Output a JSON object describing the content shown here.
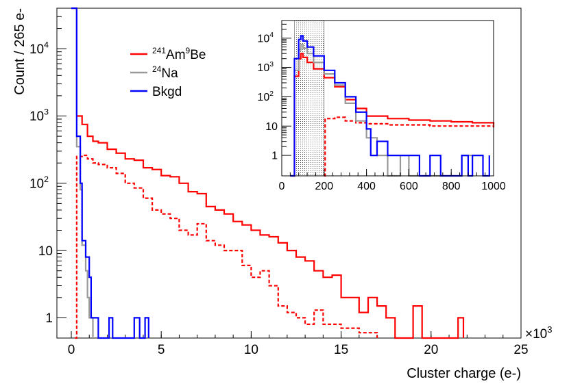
{
  "chart_data": {
    "type": "histogram",
    "colors": {
      "ambe": "#ff0000",
      "na24": "#999999",
      "bkgd": "#0000ff"
    },
    "main": {
      "xlabel": "Cluster charge (e-)",
      "ylabel": "Count / 265 e-",
      "x_multiplier": "×10",
      "x_multiplier_exp": "3",
      "xlim": [
        -0.8,
        25
      ],
      "ylim": [
        0.5,
        40000
      ],
      "log_y": true,
      "xticks": [
        0,
        5,
        10,
        15,
        20,
        25
      ],
      "xtick_labels": [
        "0",
        "5",
        "10",
        "15",
        "20",
        "25"
      ],
      "ytick_labels": [
        "1",
        "10",
        "10",
        "10",
        "10"
      ],
      "ytick_exps": [
        "",
        "",
        "2",
        "3",
        "4"
      ],
      "legend": [
        {
          "key": "ambe",
          "sup1": "241",
          "t1": "Am",
          "sup2": "9",
          "t2": "Be"
        },
        {
          "key": "na24",
          "sup1": "24",
          "t1": "Na",
          "sup2": "",
          "t2": ""
        },
        {
          "key": "bkgd",
          "sup1": "",
          "t1": "Bkgd",
          "sup2": "",
          "t2": ""
        }
      ],
      "series": [
        {
          "key": "ambe",
          "style": "solid",
          "points": [
            [
              0.0,
              40000
            ],
            [
              0.2,
              40000
            ],
            [
              0.3,
              1000
            ],
            [
              0.6,
              750
            ],
            [
              0.9,
              500
            ],
            [
              1.2,
              420
            ],
            [
              1.5,
              400
            ],
            [
              2.0,
              320
            ],
            [
              2.5,
              280
            ],
            [
              3.0,
              230
            ],
            [
              3.5,
              220
            ],
            [
              4.0,
              170
            ],
            [
              4.5,
              160
            ],
            [
              5.0,
              130
            ],
            [
              5.5,
              125
            ],
            [
              6.0,
              100
            ],
            [
              6.5,
              75
            ],
            [
              7.0,
              70
            ],
            [
              7.5,
              45
            ],
            [
              8.0,
              40
            ],
            [
              8.5,
              35
            ],
            [
              9.0,
              27
            ],
            [
              9.5,
              24
            ],
            [
              10.0,
              20
            ],
            [
              10.5,
              17
            ],
            [
              11.0,
              16
            ],
            [
              11.5,
              13
            ],
            [
              12.0,
              10
            ],
            [
              12.5,
              8
            ],
            [
              13.0,
              7
            ],
            [
              13.5,
              5
            ],
            [
              14.0,
              4
            ],
            [
              14.5,
              4.3
            ],
            [
              15.0,
              2
            ],
            [
              15.5,
              2
            ],
            [
              16.0,
              1.2
            ],
            [
              16.5,
              2
            ],
            [
              17.0,
              1.5
            ],
            [
              17.5,
              1
            ],
            [
              18.0,
              0.5
            ],
            [
              19.0,
              1.5
            ],
            [
              19.5,
              0.5
            ],
            [
              21.5,
              1
            ],
            [
              21.8,
              0.5
            ]
          ]
        },
        {
          "key": "ambe",
          "style": "dashed",
          "points": [
            [
              0.2,
              0.5
            ],
            [
              0.3,
              250
            ],
            [
              0.6,
              260
            ],
            [
              0.9,
              230
            ],
            [
              1.2,
              200
            ],
            [
              1.5,
              190
            ],
            [
              2.0,
              170
            ],
            [
              2.5,
              140
            ],
            [
              3.0,
              100
            ],
            [
              3.5,
              85
            ],
            [
              4.0,
              60
            ],
            [
              4.5,
              40
            ],
            [
              5.0,
              35
            ],
            [
              5.5,
              30
            ],
            [
              6.0,
              20
            ],
            [
              6.5,
              17
            ],
            [
              7.0,
              25
            ],
            [
              7.5,
              14
            ],
            [
              8.0,
              12
            ],
            [
              8.5,
              10
            ],
            [
              9.0,
              10
            ],
            [
              9.5,
              6
            ],
            [
              10.0,
              4
            ],
            [
              10.5,
              5
            ],
            [
              11.0,
              3
            ],
            [
              11.5,
              1.5
            ],
            [
              12.0,
              1.2
            ],
            [
              12.5,
              1
            ],
            [
              13.0,
              0.8
            ],
            [
              13.5,
              1.3
            ],
            [
              14.0,
              0.8
            ],
            [
              15.0,
              0.7
            ],
            [
              16.0,
              0.6
            ],
            [
              17.0,
              0.5
            ]
          ]
        },
        {
          "key": "na24",
          "style": "solid",
          "points": [
            [
              0.0,
              40000
            ],
            [
              0.2,
              40000
            ],
            [
              0.3,
              350
            ],
            [
              0.5,
              80
            ],
            [
              0.6,
              12
            ],
            [
              0.8,
              5
            ],
            [
              0.9,
              2
            ],
            [
              1.0,
              1
            ],
            [
              1.2,
              0.5
            ]
          ]
        },
        {
          "key": "bkgd",
          "style": "solid",
          "points": [
            [
              0.0,
              40000
            ],
            [
              0.2,
              40000
            ],
            [
              0.3,
              500
            ],
            [
              0.5,
              100
            ],
            [
              0.6,
              14
            ],
            [
              0.8,
              8
            ],
            [
              1.0,
              4
            ],
            [
              1.1,
              1
            ],
            [
              1.5,
              0.5
            ],
            [
              2.1,
              1
            ],
            [
              2.3,
              0.5
            ],
            [
              3.5,
              1
            ],
            [
              3.8,
              0.5
            ],
            [
              4.1,
              1
            ],
            [
              4.3,
              0.5
            ]
          ]
        }
      ]
    },
    "inset": {
      "xlim": [
        0,
        1000
      ],
      "ylim": [
        0.2,
        40000
      ],
      "log_y": true,
      "xticks": [
        0,
        200,
        400,
        600,
        800,
        1000
      ],
      "xtick_labels": [
        "0",
        "200",
        "400",
        "600",
        "800",
        "1000"
      ],
      "ytick_labels": [
        "1",
        "10",
        "10",
        "10",
        "10"
      ],
      "ytick_exps": [
        "",
        "",
        "2",
        "3",
        "4"
      ],
      "shaded_region": [
        60,
        200
      ],
      "series": [
        {
          "key": "ambe",
          "style": "solid",
          "points": [
            [
              40,
              0.2
            ],
            [
              60,
              500
            ],
            [
              80,
              2000
            ],
            [
              90,
              3000
            ],
            [
              100,
              2200
            ],
            [
              120,
              1500
            ],
            [
              150,
              900
            ],
            [
              200,
              450
            ],
            [
              250,
              220
            ],
            [
              300,
              80
            ],
            [
              350,
              40
            ],
            [
              400,
              22
            ],
            [
              500,
              18
            ],
            [
              600,
              16
            ],
            [
              700,
              15
            ],
            [
              800,
              14
            ],
            [
              900,
              13
            ],
            [
              1000,
              11
            ]
          ]
        },
        {
          "key": "ambe",
          "style": "dashed",
          "points": [
            [
              200,
              0.2
            ],
            [
              205,
              18
            ],
            [
              250,
              20
            ],
            [
              300,
              15
            ],
            [
              350,
              13
            ],
            [
              400,
              12
            ],
            [
              500,
              11
            ],
            [
              600,
              11
            ],
            [
              700,
              10
            ],
            [
              800,
              10
            ],
            [
              900,
              10
            ],
            [
              1000,
              9
            ]
          ]
        },
        {
          "key": "na24",
          "style": "solid",
          "points": [
            [
              40,
              0.2
            ],
            [
              60,
              800
            ],
            [
              80,
              4000
            ],
            [
              90,
              6000
            ],
            [
              100,
              4500
            ],
            [
              120,
              3000
            ],
            [
              150,
              1500
            ],
            [
              200,
              600
            ],
            [
              250,
              250
            ],
            [
              300,
              60
            ],
            [
              350,
              15
            ],
            [
              400,
              4
            ],
            [
              450,
              1
            ],
            [
              500,
              0.2
            ],
            [
              560,
              1
            ],
            [
              600,
              0.2
            ],
            [
              850,
              1
            ],
            [
              900,
              0.2
            ]
          ]
        },
        {
          "key": "bkgd",
          "style": "solid",
          "points": [
            [
              40,
              0.2
            ],
            [
              60,
              2000
            ],
            [
              80,
              9000
            ],
            [
              90,
              12000
            ],
            [
              100,
              8000
            ],
            [
              120,
              5000
            ],
            [
              150,
              2500
            ],
            [
              200,
              800
            ],
            [
              250,
              300
            ],
            [
              300,
              100
            ],
            [
              350,
              30
            ],
            [
              400,
              8
            ],
            [
              420,
              1
            ],
            [
              450,
              3
            ],
            [
              500,
              1
            ],
            [
              550,
              1
            ],
            [
              600,
              1
            ],
            [
              650,
              0.2
            ],
            [
              700,
              1
            ],
            [
              750,
              0.2
            ],
            [
              850,
              1
            ],
            [
              880,
              0.2
            ],
            [
              900,
              1
            ],
            [
              950,
              0.2
            ],
            [
              980,
              1
            ]
          ]
        }
      ]
    }
  }
}
